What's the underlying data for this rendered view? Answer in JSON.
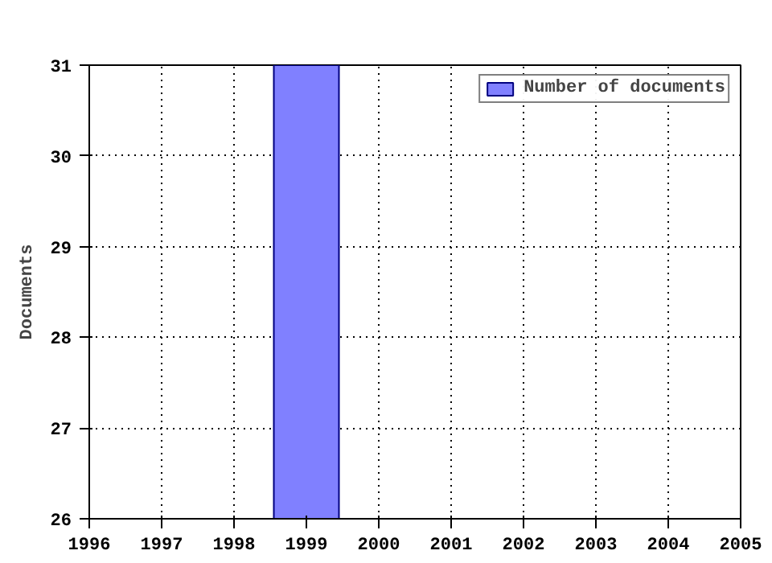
{
  "chart_data": {
    "type": "bar",
    "ylabel": "Documents",
    "x": [
      1999
    ],
    "series": [
      {
        "name": "Number of documents",
        "color": "#8080ff",
        "values": [
          31
        ]
      }
    ],
    "xlim": [
      1996,
      2005
    ],
    "xticks": [
      1996,
      1997,
      1998,
      1999,
      2000,
      2001,
      2002,
      2003,
      2004,
      2005
    ],
    "ylim": [
      26,
      31
    ],
    "yticks": [
      26,
      27,
      28,
      29,
      30,
      31
    ],
    "grid": true,
    "legend": "top right"
  }
}
